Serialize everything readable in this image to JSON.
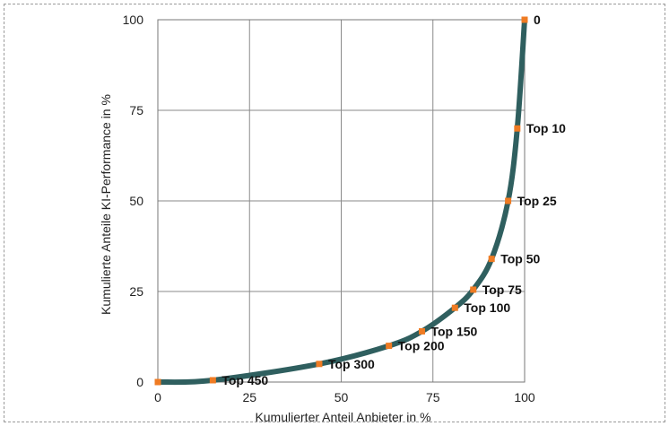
{
  "chart_data": {
    "type": "line",
    "title": "",
    "xlabel": "Kumulierter Anteil Anbieter in %",
    "ylabel": "Kumulierte Anteile KI-Performance in %",
    "xlim": [
      0,
      100
    ],
    "ylim": [
      0,
      100
    ],
    "xticks": [
      "0",
      "25",
      "50",
      "75",
      "100"
    ],
    "yticks": [
      "0",
      "25",
      "50",
      "75",
      "100"
    ],
    "grid": true,
    "legend": "none",
    "series": [
      {
        "x": [
          0,
          15,
          44,
          63,
          72,
          81,
          86,
          91,
          95.5,
          98,
          100
        ],
        "y": [
          0,
          0.5,
          5,
          10,
          14,
          20.5,
          25.5,
          34,
          50,
          70,
          100
        ],
        "point_labels": [
          "",
          "Top 450",
          "Top 300",
          "Top 200",
          "Top 150",
          "Top 100",
          "Top 75",
          "Top 50",
          "Top 25",
          "Top 10",
          "0"
        ]
      }
    ],
    "colors": {
      "line": "#2f5f5f",
      "marker": "#ef7b23",
      "grid": "#8a8a8a"
    }
  }
}
